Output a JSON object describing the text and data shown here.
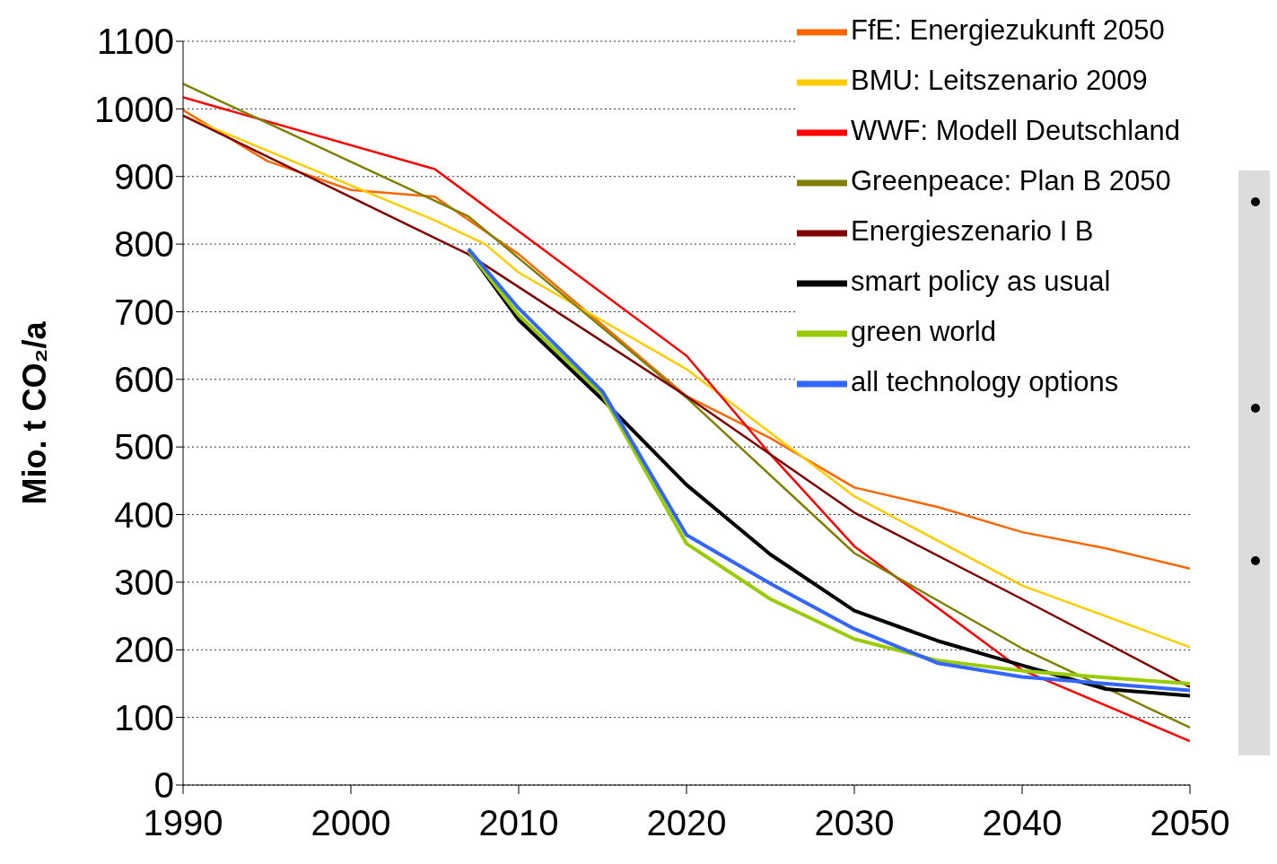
{
  "chart_data": {
    "type": "line",
    "ylabel": "Mio. t CO₂/a",
    "xlim": [
      1990,
      2050
    ],
    "xticks": [
      1990,
      2000,
      2010,
      2020,
      2030,
      2040,
      2050
    ],
    "ylim": [
      0,
      1100
    ],
    "yticks": [
      0,
      100,
      200,
      300,
      400,
      500,
      600,
      700,
      800,
      900,
      1000,
      1100
    ],
    "grid": "y",
    "legend": "top right",
    "marker": "none",
    "line_style": "solid",
    "series": [
      {
        "name": "FfE: Energiezukunft 2050",
        "color": "#ff6600",
        "x": [
          1990,
          1995,
          2000,
          2005,
          2010,
          2015,
          2020,
          2025,
          2030,
          2035,
          2040,
          2045,
          2050
        ],
        "values": [
          998,
          923,
          880,
          870,
          785,
          680,
          575,
          513,
          440,
          411,
          374,
          350,
          320
        ]
      },
      {
        "name": "BMU: Leitszenario 2009",
        "color": "#ffcc00",
        "x": [
          1990,
          2005,
          2008,
          2010,
          2020,
          2030,
          2040,
          2050
        ],
        "values": [
          990,
          835,
          800,
          758,
          615,
          427,
          295,
          204
        ]
      },
      {
        "name": "WWF: Modell Deutschland",
        "color": "#ff0000",
        "x": [
          1990,
          2005,
          2020,
          2025,
          2030,
          2040,
          2050
        ],
        "values": [
          1017,
          911,
          635,
          489,
          353,
          170,
          65
        ]
      },
      {
        "name": "Greenpeace: Plan B 2050",
        "color": "#808000",
        "x": [
          1990,
          2007,
          2020,
          2030,
          2040,
          2050
        ],
        "values": [
          1037,
          841,
          573,
          343,
          202,
          85
        ]
      },
      {
        "name": "Energieszenario I B",
        "color": "#800000",
        "x": [
          1990,
          2007,
          2020,
          2030,
          2040,
          2050
        ],
        "values": [
          990,
          785,
          575,
          403,
          275,
          145
        ]
      },
      {
        "name": "smart policy as usual",
        "color": "#000000",
        "x": [
          2007,
          2010,
          2015,
          2020,
          2025,
          2030,
          2035,
          2040,
          2045,
          2050
        ],
        "values": [
          790,
          688,
          570,
          444,
          341,
          258,
          213,
          177,
          142,
          132
        ]
      },
      {
        "name": "green world",
        "color": "#99cc00",
        "x": [
          2007,
          2010,
          2015,
          2020,
          2025,
          2030,
          2035,
          2040,
          2045,
          2050
        ],
        "values": [
          790,
          695,
          577,
          357,
          275,
          216,
          184,
          169,
          159,
          150
        ]
      },
      {
        "name": "all technology options",
        "color": "#3366ff",
        "x": [
          2007,
          2010,
          2015,
          2020,
          2025,
          2030,
          2035,
          2040,
          2045,
          2050
        ],
        "values": [
          793,
          705,
          582,
          370,
          298,
          231,
          180,
          160,
          150,
          140
        ]
      }
    ]
  }
}
